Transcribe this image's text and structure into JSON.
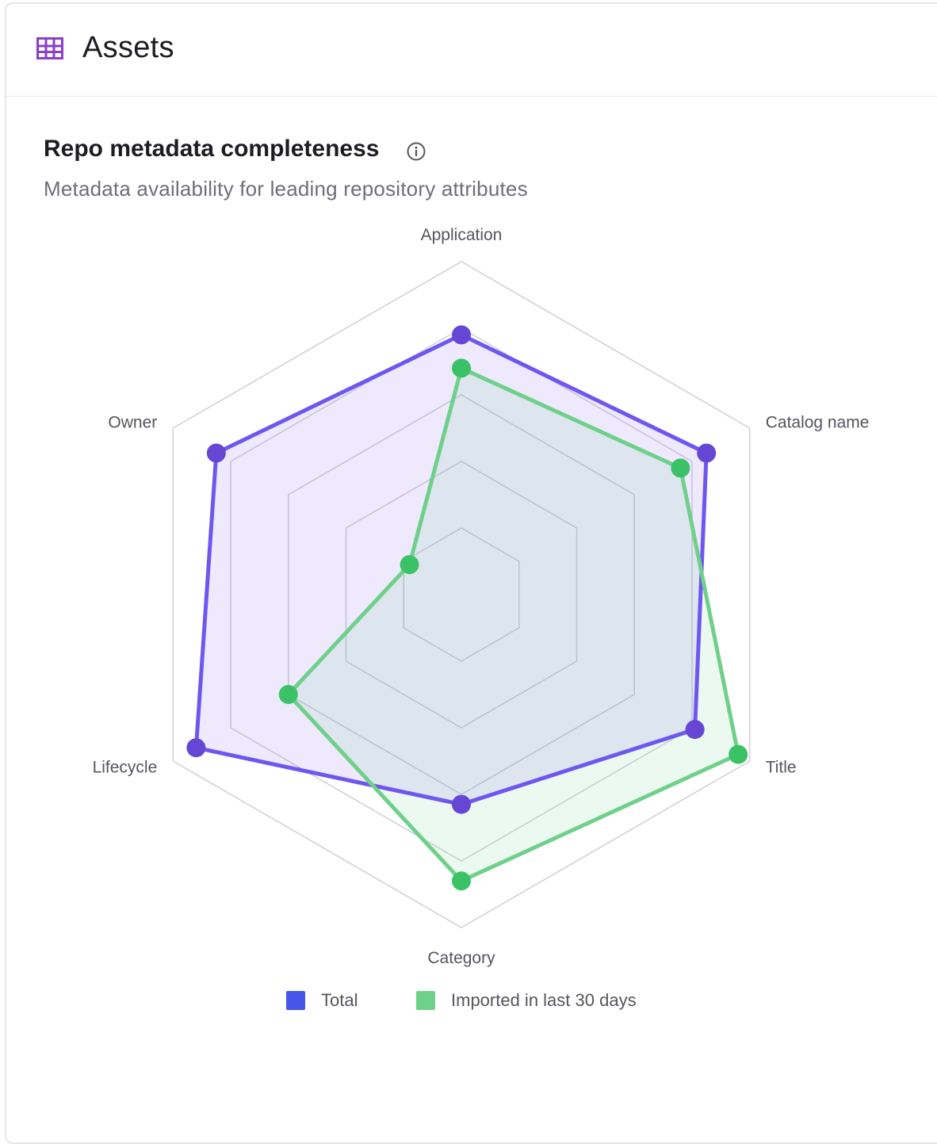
{
  "header": {
    "title": "Assets",
    "icon": "grid-table-icon"
  },
  "section": {
    "title": "Repo metadata completeness",
    "subtitle": "Metadata availability for leading repository attributes",
    "info_icon": "info-icon"
  },
  "colors": {
    "total": "#6e56f0",
    "total_dot": "#6547d4",
    "imported": "#6fd08a",
    "imported_dot": "#3cc266",
    "total_legend": "#4556e8",
    "imported_legend": "#6fd08a",
    "grid": "#cfcfd6",
    "icon": "#8b3fc9"
  },
  "chart_data": {
    "type": "radar",
    "axes": [
      "Application",
      "Catalog name",
      "Title",
      "Category",
      "Lifecycle",
      "Owner"
    ],
    "rlim": [
      0,
      5
    ],
    "grid_levels": 5,
    "legend_position": "bottom",
    "series": [
      {
        "name": "Total",
        "values": [
          3.9,
          4.25,
          4.05,
          3.15,
          4.6,
          4.25
        ]
      },
      {
        "name": "Imported in last 30 days",
        "values": [
          3.4,
          3.8,
          4.8,
          4.3,
          3.0,
          0.9
        ]
      }
    ]
  },
  "legend": [
    {
      "label": "Total"
    },
    {
      "label": "Imported in last 30 days"
    }
  ]
}
